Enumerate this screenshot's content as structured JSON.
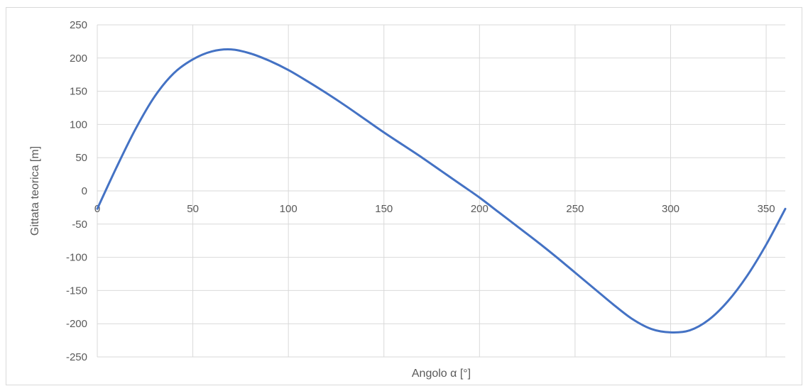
{
  "chart_data": {
    "type": "line",
    "xlabel": "Angolo α [°]",
    "ylabel": "Gittata teorica [m]",
    "xlim": [
      0,
      360
    ],
    "ylim": [
      -250,
      250
    ],
    "x_ticks": [
      0,
      50,
      100,
      150,
      200,
      250,
      300,
      350
    ],
    "y_ticks": [
      250,
      200,
      150,
      100,
      50,
      0,
      -50,
      -100,
      -150,
      -200,
      -250
    ],
    "grid": true,
    "legend": "none",
    "series": [
      {
        "color": "#4472c4",
        "x": [
          0,
          10,
          20,
          30,
          40,
          50,
          60,
          70,
          80,
          90,
          100,
          110,
          120,
          130,
          140,
          150,
          160,
          170,
          180,
          190,
          200,
          210,
          220,
          230,
          240,
          250,
          260,
          270,
          280,
          290,
          300,
          310,
          320,
          330,
          340,
          350,
          360
        ],
        "y": [
          -27,
          35,
          93,
          142,
          177,
          198,
          210,
          213,
          207,
          196,
          182,
          165,
          147,
          128,
          108,
          88,
          69,
          50,
          30,
          10,
          -10,
          -32,
          -54,
          -76,
          -99,
          -123,
          -147,
          -171,
          -193,
          -208,
          -213,
          -210,
          -194,
          -166,
          -128,
          -81,
          -27
        ]
      }
    ]
  }
}
